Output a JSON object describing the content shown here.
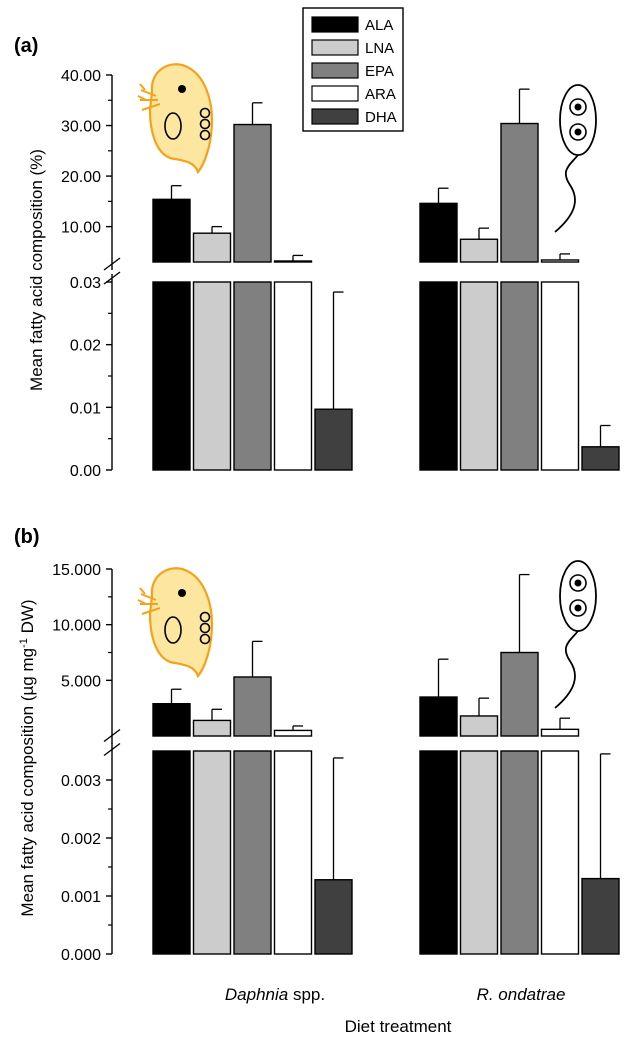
{
  "chart_data": [
    {
      "type": "bar",
      "panel_label": "(a)",
      "ylabel": "Mean fatty acid composition (%)",
      "categories": [
        "Daphnia spp.",
        "R. ondatrae"
      ],
      "series": [
        {
          "name": "ALA",
          "values": [
            15.4,
            14.6
          ],
          "errors": [
            2.7,
            3.0
          ]
        },
        {
          "name": "LNA",
          "values": [
            8.7,
            7.5
          ],
          "errors": [
            1.3,
            2.2
          ]
        },
        {
          "name": "EPA",
          "values": [
            30.2,
            30.4
          ],
          "errors": [
            4.3,
            6.8
          ]
        },
        {
          "name": "ARA",
          "values": [
            3.2,
            3.4
          ],
          "errors": [
            1.1,
            1.2
          ]
        },
        {
          "name": "DHA",
          "values": [
            0.0097,
            0.0037
          ],
          "errors": [
            0.0187,
            0.0034
          ]
        }
      ],
      "axis_break": true,
      "upper_ticks": [
        "10.00",
        "20.00",
        "30.00",
        "40.00"
      ],
      "lower_ticks": [
        "0.00",
        "0.01",
        "0.02",
        "0.03"
      ],
      "upper_ylim": [
        3,
        40
      ],
      "lower_ylim": [
        0,
        0.03
      ]
    },
    {
      "type": "bar",
      "panel_label": "(b)",
      "ylabel": "Mean fatty acid composition (µg mg⁻¹ DW)",
      "categories": [
        "Daphnia spp.",
        "R. ondatrae"
      ],
      "series": [
        {
          "name": "ALA",
          "values": [
            2.9,
            3.5
          ],
          "errors": [
            1.3,
            3.4
          ]
        },
        {
          "name": "LNA",
          "values": [
            1.4,
            1.8
          ],
          "errors": [
            1.0,
            1.6
          ]
        },
        {
          "name": "EPA",
          "values": [
            5.3,
            7.5
          ],
          "errors": [
            3.2,
            7.0
          ]
        },
        {
          "name": "ARA",
          "values": [
            0.5,
            0.6
          ],
          "errors": [
            0.4,
            1.0
          ]
        },
        {
          "name": "DHA",
          "values": [
            0.00128,
            0.0013
          ],
          "errors": [
            0.0021,
            0.00215
          ]
        }
      ],
      "axis_break": true,
      "upper_ticks": [
        "5.000",
        "10.000",
        "15.000"
      ],
      "lower_ticks": [
        "0.000",
        "0.001",
        "0.002",
        "0.003"
      ],
      "upper_ylim": [
        0,
        15
      ],
      "lower_ylim": [
        0,
        0.0035
      ]
    }
  ],
  "legend": [
    {
      "label": "ALA",
      "color": "#000000"
    },
    {
      "label": "LNA",
      "color": "#cccccc"
    },
    {
      "label": "EPA",
      "color": "#808080"
    },
    {
      "label": "ARA",
      "color": "#ffffff"
    },
    {
      "label": "DHA",
      "color": "#404040"
    }
  ],
  "xlabel": "Diet treatment",
  "category_labels": [
    {
      "italic": "Daphnia",
      "plain": " spp."
    },
    {
      "italic": "R. ondatrae",
      "plain": ""
    }
  ],
  "colors": {
    "ALA": "#000000",
    "LNA": "#cccccc",
    "EPA": "#808080",
    "ARA": "#ffffff",
    "DHA": "#404040",
    "daphnia_fill": "#fde7a0",
    "daphnia_stroke": "#f5a21b"
  },
  "icons": [
    "daphnia-icon",
    "flagellate-icon"
  ]
}
